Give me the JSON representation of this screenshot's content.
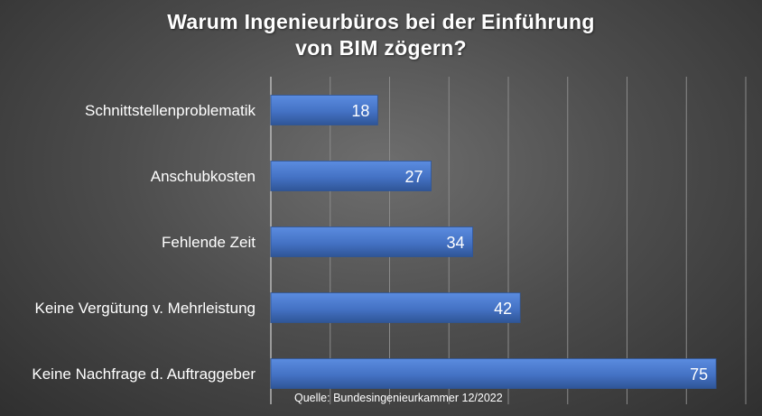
{
  "chart_data": {
    "type": "bar",
    "orientation": "horizontal",
    "title_lines": [
      "Warum Ingenieurbüros bei der Einführung",
      "von BIM zögern?"
    ],
    "categories": [
      "Schnittstellenproblematik",
      "Anschubkosten",
      "Fehlende Zeit",
      "Keine Vergütung v. Mehrleistung",
      "Keine Nachfrage d. Auftraggeber"
    ],
    "values": [
      18,
      27,
      34,
      42,
      75
    ],
    "xlim": [
      0,
      80
    ],
    "grid": true,
    "data_labels": true,
    "source": "Quelle: Bundesingenieurkammer 12/2022",
    "colors": {
      "bar": "#4472c4",
      "bar_light": "#5b8ce0",
      "bar_dark": "#2f5597",
      "text": "#ffffff",
      "grid": "#8a8a8a"
    }
  }
}
